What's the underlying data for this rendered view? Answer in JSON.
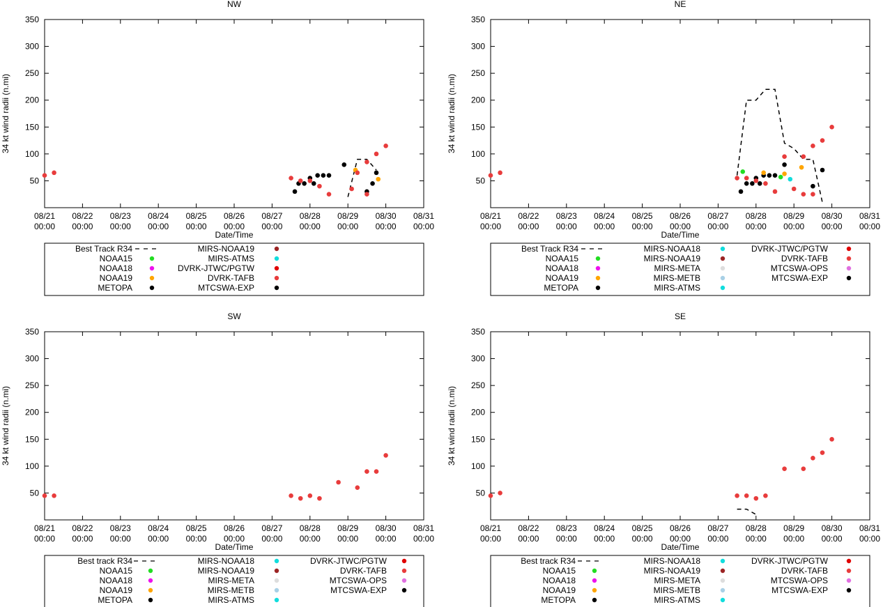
{
  "colors": {
    "black": "#000000",
    "red": "#e83c3c",
    "green": "#22dd22",
    "magenta": "#ee11ee",
    "orange": "#ffa500",
    "cyan": "#11dddd",
    "darkred": "#9c2424",
    "lightgray": "#dddddd",
    "lightblue": "#a8d0e6",
    "pink": "#e070e0"
  },
  "chart_data": [
    {
      "id": "nw",
      "type": "scatter",
      "title": "NW",
      "xlabel": "Date/Time",
      "ylabel": "34 kt wind radii (n.mi)",
      "xlim": [
        0,
        10
      ],
      "ylim": [
        0,
        350
      ],
      "yticks": [
        50,
        100,
        150,
        200,
        250,
        300,
        350
      ],
      "xticks": [
        {
          "x": 0,
          "l1": "08/21",
          "l2": "00:00"
        },
        {
          "x": 1,
          "l1": "08/22",
          "l2": "00:00"
        },
        {
          "x": 2,
          "l1": "08/23",
          "l2": "00:00"
        },
        {
          "x": 3,
          "l1": "08/24",
          "l2": "00:00"
        },
        {
          "x": 4,
          "l1": "08/25",
          "l2": "00:00"
        },
        {
          "x": 5,
          "l1": "08/26",
          "l2": "00:00"
        },
        {
          "x": 6,
          "l1": "08/27",
          "l2": "00:00"
        },
        {
          "x": 7,
          "l1": "08/28",
          "l2": "00:00"
        },
        {
          "x": 8,
          "l1": "08/29",
          "l2": "00:00"
        },
        {
          "x": 9,
          "l1": "08/30",
          "l2": "00:00"
        },
        {
          "x": 10,
          "l1": "08/31",
          "l2": "00:00"
        }
      ],
      "track": [
        [
          8.0,
          20
        ],
        [
          8.25,
          90
        ],
        [
          8.5,
          90
        ],
        [
          8.75,
          70
        ]
      ],
      "series": [
        {
          "name": "METOPA",
          "color": "#000000",
          "points": [
            [
              6.6,
              30
            ],
            [
              6.7,
              45
            ],
            [
              6.85,
              45
            ],
            [
              7.0,
              55
            ],
            [
              7.1,
              45
            ],
            [
              7.2,
              60
            ],
            [
              7.35,
              60
            ],
            [
              7.5,
              60
            ],
            [
              7.9,
              80
            ],
            [
              8.5,
              30
            ],
            [
              8.65,
              45
            ],
            [
              8.75,
              65
            ]
          ]
        },
        {
          "name": "NOAA19",
          "color": "#ffa500",
          "points": [
            [
              8.2,
              70
            ],
            [
              8.8,
              53
            ]
          ]
        },
        {
          "name": "DVRK-TAFB",
          "color": "#e83c3c",
          "points": [
            [
              0,
              60
            ],
            [
              0.25,
              65
            ],
            [
              6.5,
              55
            ],
            [
              6.75,
              50
            ],
            [
              7.0,
              50
            ],
            [
              7.25,
              40
            ],
            [
              7.5,
              25
            ],
            [
              8.1,
              35
            ],
            [
              8.25,
              65
            ],
            [
              8.5,
              85
            ],
            [
              8.5,
              25
            ],
            [
              8.75,
              100
            ],
            [
              9.0,
              115
            ]
          ]
        }
      ],
      "legend": [
        [
          {
            "label": "Best Track R34",
            "kind": "line",
            "color": "#000000"
          },
          {
            "label": "NOAA15",
            "kind": "dot",
            "color": "#22dd22"
          },
          {
            "label": "NOAA18",
            "kind": "dot",
            "color": "#ee11ee"
          },
          {
            "label": "NOAA19",
            "kind": "dot",
            "color": "#ffa500"
          },
          {
            "label": "METOPA",
            "kind": "dot",
            "color": "#000000"
          }
        ],
        [
          {
            "label": "MIRS-NOAA19",
            "kind": "dot",
            "color": "#9c2424"
          },
          {
            "label": "MIRS-ATMS",
            "kind": "dot",
            "color": "#11dddd"
          },
          {
            "label": "DVRK-JTWC/PGTW",
            "kind": "dot",
            "color": "#e00000"
          },
          {
            "label": "DVRK-TAFB",
            "kind": "dot",
            "color": "#e83c3c"
          },
          {
            "label": "MTCSWA-EXP",
            "kind": "dot",
            "color": "#000000"
          }
        ]
      ]
    },
    {
      "id": "ne",
      "type": "scatter",
      "title": "NE",
      "xlabel": "Date/Time",
      "ylabel": "34 kt wind radii (n.mi)",
      "xlim": [
        0,
        10
      ],
      "ylim": [
        0,
        350
      ],
      "yticks": [
        50,
        100,
        150,
        200,
        250,
        300,
        350
      ],
      "xticks": [
        {
          "x": 0,
          "l1": "08/21",
          "l2": "00:00"
        },
        {
          "x": 1,
          "l1": "08/22",
          "l2": "00:00"
        },
        {
          "x": 2,
          "l1": "08/23",
          "l2": "00:00"
        },
        {
          "x": 3,
          "l1": "08/24",
          "l2": "00:00"
        },
        {
          "x": 4,
          "l1": "08/25",
          "l2": "00:00"
        },
        {
          "x": 5,
          "l1": "08/26",
          "l2": "00:00"
        },
        {
          "x": 6,
          "l1": "08/27",
          "l2": "00:00"
        },
        {
          "x": 7,
          "l1": "08/28",
          "l2": "00:00"
        },
        {
          "x": 8,
          "l1": "08/29",
          "l2": "00:00"
        },
        {
          "x": 9,
          "l1": "08/30",
          "l2": "00:00"
        },
        {
          "x": 10,
          "l1": "08/31",
          "l2": "00:00"
        }
      ],
      "track": [
        [
          6.5,
          60
        ],
        [
          6.75,
          200
        ],
        [
          7.0,
          200
        ],
        [
          7.25,
          220
        ],
        [
          7.5,
          220
        ],
        [
          7.75,
          120
        ],
        [
          8.0,
          110
        ],
        [
          8.25,
          90
        ],
        [
          8.5,
          90
        ],
        [
          8.75,
          10
        ]
      ],
      "series": [
        {
          "name": "METOPA",
          "color": "#000000",
          "points": [
            [
              6.6,
              30
            ],
            [
              6.75,
              45
            ],
            [
              6.9,
              45
            ],
            [
              7.0,
              55
            ],
            [
              7.1,
              45
            ],
            [
              7.2,
              60
            ],
            [
              7.35,
              60
            ],
            [
              7.5,
              60
            ],
            [
              7.75,
              80
            ],
            [
              8.5,
              40
            ],
            [
              8.75,
              70
            ]
          ]
        },
        {
          "name": "NOAA15",
          "color": "#22dd22",
          "points": [
            [
              6.65,
              67
            ],
            [
              7.65,
              57
            ]
          ]
        },
        {
          "name": "NOAA19",
          "color": "#ffa500",
          "points": [
            [
              7.2,
              65
            ],
            [
              7.75,
              63
            ],
            [
              8.2,
              75
            ]
          ]
        },
        {
          "name": "MIRS-ATMS",
          "color": "#11dddd",
          "points": [
            [
              7.9,
              53
            ]
          ]
        },
        {
          "name": "DVRK-TAFB",
          "color": "#e83c3c",
          "points": [
            [
              0,
              60
            ],
            [
              0.25,
              65
            ],
            [
              6.5,
              55
            ],
            [
              6.75,
              55
            ],
            [
              7.0,
              50
            ],
            [
              7.25,
              45
            ],
            [
              7.5,
              30
            ],
            [
              7.75,
              95
            ],
            [
              8.0,
              35
            ],
            [
              8.25,
              95
            ],
            [
              8.25,
              25
            ],
            [
              8.5,
              115
            ],
            [
              8.5,
              25
            ],
            [
              8.75,
              125
            ],
            [
              9.0,
              150
            ]
          ]
        }
      ],
      "legend": [
        [
          {
            "label": "Best Track R34",
            "kind": "line",
            "color": "#000000"
          },
          {
            "label": "NOAA15",
            "kind": "dot",
            "color": "#22dd22"
          },
          {
            "label": "NOAA18",
            "kind": "dot",
            "color": "#ee11ee"
          },
          {
            "label": "NOAA19",
            "kind": "dot",
            "color": "#ffa500"
          },
          {
            "label": "METOPA",
            "kind": "dot",
            "color": "#000000"
          }
        ],
        [
          {
            "label": "MIRS-NOAA18",
            "kind": "dot",
            "color": "#11dddd"
          },
          {
            "label": "MIRS-NOAA19",
            "kind": "dot",
            "color": "#9c2424"
          },
          {
            "label": "MIRS-META",
            "kind": "dot",
            "color": "#dddddd"
          },
          {
            "label": "MIRS-METB",
            "kind": "dot",
            "color": "#a8d0e6"
          },
          {
            "label": "MIRS-ATMS",
            "kind": "dot",
            "color": "#11dddd"
          }
        ],
        [
          {
            "label": "DVRK-JTWC/PGTW",
            "kind": "dot",
            "color": "#e00000"
          },
          {
            "label": "DVRK-TAFB",
            "kind": "dot",
            "color": "#e83c3c"
          },
          {
            "label": "MTCSWA-OPS",
            "kind": "dot",
            "color": "#e070e0"
          },
          {
            "label": "MTCSWA-EXP",
            "kind": "dot",
            "color": "#000000"
          }
        ]
      ]
    },
    {
      "id": "sw",
      "type": "scatter",
      "title": "SW",
      "xlabel": "Date/Time",
      "ylabel": "34 kt wind radii (n.mi)",
      "xlim": [
        0,
        10
      ],
      "ylim": [
        0,
        350
      ],
      "yticks": [
        50,
        100,
        150,
        200,
        250,
        300,
        350
      ],
      "xticks": [
        {
          "x": 0,
          "l1": "08/21",
          "l2": "00:00"
        },
        {
          "x": 1,
          "l1": "08/22",
          "l2": "00:00"
        },
        {
          "x": 2,
          "l1": "08/23",
          "l2": "00:00"
        },
        {
          "x": 3,
          "l1": "08/24",
          "l2": "00:00"
        },
        {
          "x": 4,
          "l1": "08/25",
          "l2": "00:00"
        },
        {
          "x": 5,
          "l1": "08/26",
          "l2": "00:00"
        },
        {
          "x": 6,
          "l1": "08/27",
          "l2": "00:00"
        },
        {
          "x": 7,
          "l1": "08/28",
          "l2": "00:00"
        },
        {
          "x": 8,
          "l1": "08/29",
          "l2": "00:00"
        },
        {
          "x": 9,
          "l1": "08/30",
          "l2": "00:00"
        },
        {
          "x": 10,
          "l1": "08/31",
          "l2": "00:00"
        }
      ],
      "track": [],
      "series": [
        {
          "name": "DVRK-TAFB",
          "color": "#e83c3c",
          "points": [
            [
              0,
              45
            ],
            [
              0.25,
              45
            ],
            [
              6.5,
              45
            ],
            [
              6.75,
              40
            ],
            [
              7.0,
              45
            ],
            [
              7.25,
              40
            ],
            [
              7.75,
              70
            ],
            [
              8.25,
              60
            ],
            [
              8.5,
              90
            ],
            [
              8.75,
              90
            ],
            [
              9.0,
              120
            ]
          ]
        }
      ],
      "legend": [
        [
          {
            "label": "Best track R34",
            "kind": "line",
            "color": "#000000"
          },
          {
            "label": "NOAA15",
            "kind": "dot",
            "color": "#22dd22"
          },
          {
            "label": "NOAA18",
            "kind": "dot",
            "color": "#ee11ee"
          },
          {
            "label": "NOAA19",
            "kind": "dot",
            "color": "#ffa500"
          },
          {
            "label": "METOPA",
            "kind": "dot",
            "color": "#000000"
          }
        ],
        [
          {
            "label": "MIRS-NOAA18",
            "kind": "dot",
            "color": "#11dddd"
          },
          {
            "label": "MIRS-NOAA19",
            "kind": "dot",
            "color": "#9c2424"
          },
          {
            "label": "MIRS-META",
            "kind": "dot",
            "color": "#dddddd"
          },
          {
            "label": "MIRS-METB",
            "kind": "dot",
            "color": "#a8d0e6"
          },
          {
            "label": "MIRS-ATMS",
            "kind": "dot",
            "color": "#11dddd"
          }
        ],
        [
          {
            "label": "DVRK-JTWC/PGTW",
            "kind": "dot",
            "color": "#e00000"
          },
          {
            "label": "DVRK-TAFB",
            "kind": "dot",
            "color": "#e83c3c"
          },
          {
            "label": "MTCSWA-OPS",
            "kind": "dot",
            "color": "#e070e0"
          },
          {
            "label": "MTCSWA-EXP",
            "kind": "dot",
            "color": "#000000"
          }
        ]
      ]
    },
    {
      "id": "se",
      "type": "scatter",
      "title": "SE",
      "xlabel": "Date/Time",
      "ylabel": "34 kt wind radii (n.mi)",
      "xlim": [
        0,
        10
      ],
      "ylim": [
        0,
        350
      ],
      "yticks": [
        50,
        100,
        150,
        200,
        250,
        300,
        350
      ],
      "xticks": [
        {
          "x": 0,
          "l1": "08/21",
          "l2": "00:00"
        },
        {
          "x": 1,
          "l1": "08/22",
          "l2": "00:00"
        },
        {
          "x": 2,
          "l1": "08/23",
          "l2": "00:00"
        },
        {
          "x": 3,
          "l1": "08/24",
          "l2": "00:00"
        },
        {
          "x": 4,
          "l1": "08/25",
          "l2": "00:00"
        },
        {
          "x": 5,
          "l1": "08/26",
          "l2": "00:00"
        },
        {
          "x": 6,
          "l1": "08/27",
          "l2": "00:00"
        },
        {
          "x": 7,
          "l1": "08/28",
          "l2": "00:00"
        },
        {
          "x": 8,
          "l1": "08/29",
          "l2": "00:00"
        },
        {
          "x": 9,
          "l1": "08/30",
          "l2": "00:00"
        },
        {
          "x": 10,
          "l1": "08/31",
          "l2": "00:00"
        }
      ],
      "track": [
        [
          6.5,
          20
        ],
        [
          6.75,
          20
        ],
        [
          7.0,
          10
        ]
      ],
      "series": [
        {
          "name": "DVRK-TAFB",
          "color": "#e83c3c",
          "points": [
            [
              0,
              45
            ],
            [
              0.25,
              50
            ],
            [
              6.5,
              45
            ],
            [
              6.75,
              45
            ],
            [
              7.0,
              40
            ],
            [
              7.25,
              45
            ],
            [
              7.75,
              95
            ],
            [
              8.25,
              95
            ],
            [
              8.5,
              115
            ],
            [
              8.75,
              125
            ],
            [
              9.0,
              150
            ]
          ]
        }
      ],
      "legend": [
        [
          {
            "label": "Best track R34",
            "kind": "line",
            "color": "#000000"
          },
          {
            "label": "NOAA15",
            "kind": "dot",
            "color": "#22dd22"
          },
          {
            "label": "NOAA18",
            "kind": "dot",
            "color": "#ee11ee"
          },
          {
            "label": "NOAA19",
            "kind": "dot",
            "color": "#ffa500"
          },
          {
            "label": "METOPA",
            "kind": "dot",
            "color": "#000000"
          }
        ],
        [
          {
            "label": "MIRS-NOAA18",
            "kind": "dot",
            "color": "#11dddd"
          },
          {
            "label": "MIRS-NOAA19",
            "kind": "dot",
            "color": "#9c2424"
          },
          {
            "label": "MIRS-META",
            "kind": "dot",
            "color": "#dddddd"
          },
          {
            "label": "MIRS-METB",
            "kind": "dot",
            "color": "#a8d0e6"
          },
          {
            "label": "MIRS-ATMS",
            "kind": "dot",
            "color": "#11dddd"
          }
        ],
        [
          {
            "label": "DVRK-JTWC/PGTW",
            "kind": "dot",
            "color": "#e00000"
          },
          {
            "label": "DVRK-TAFB",
            "kind": "dot",
            "color": "#e83c3c"
          },
          {
            "label": "MTCSWA-OPS",
            "kind": "dot",
            "color": "#e070e0"
          },
          {
            "label": "MTCSWA-EXP",
            "kind": "dot",
            "color": "#000000"
          }
        ]
      ]
    }
  ]
}
